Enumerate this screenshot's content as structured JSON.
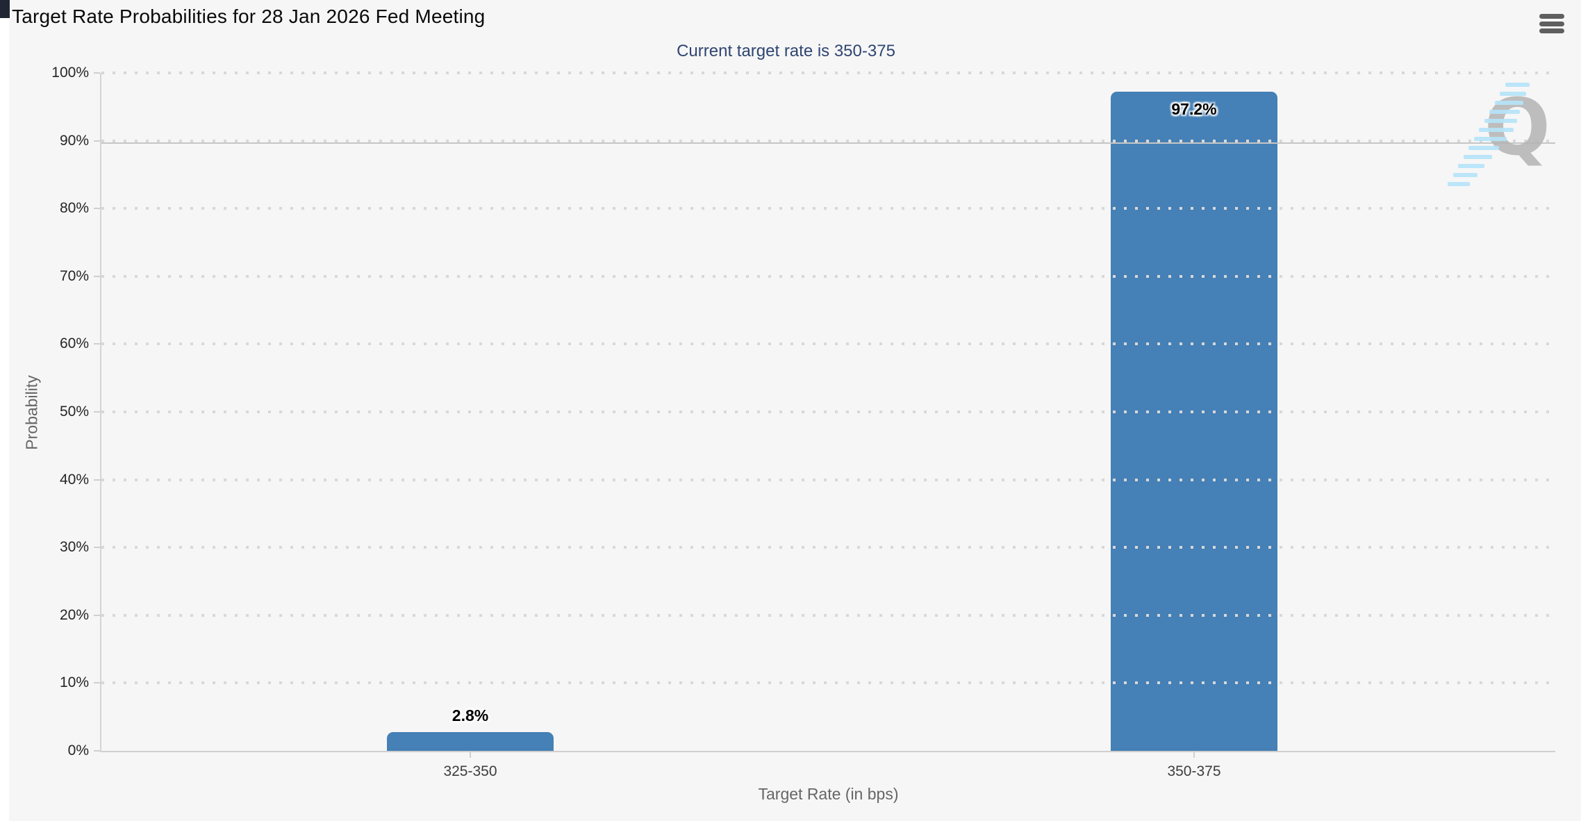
{
  "header": {
    "title": "Target Rate Probabilities for 28 Jan 2026 Fed Meeting",
    "menu_icon": "hamburger-icon"
  },
  "chart_data": {
    "type": "bar",
    "title": "Target Rate Probabilities for 28 Jan 2026 Fed Meeting",
    "subtitle": "Current target rate is 350-375",
    "categories": [
      "325-350",
      "350-375"
    ],
    "values": [
      2.8,
      97.2
    ],
    "value_labels": [
      "2.8%",
      "97.2%"
    ],
    "xlabel": "Target Rate (in bps)",
    "ylabel": "Probability",
    "ylim": [
      0,
      100
    ],
    "ytick_step": 10,
    "ytick_labels": [
      "0%",
      "10%",
      "20%",
      "30%",
      "40%",
      "50%",
      "60%",
      "70%",
      "80%",
      "90%",
      "100%"
    ],
    "grid_style": "dotted",
    "solid_line_y": 90,
    "legend": "none",
    "bar_color": "#4580b6",
    "subtitle_color": "#2f4572",
    "background_color": "#f6f6f6"
  },
  "watermark": {
    "letter": "Q",
    "letter_color": "#b4b4b4",
    "stripe_color": "#b5e3f8"
  }
}
